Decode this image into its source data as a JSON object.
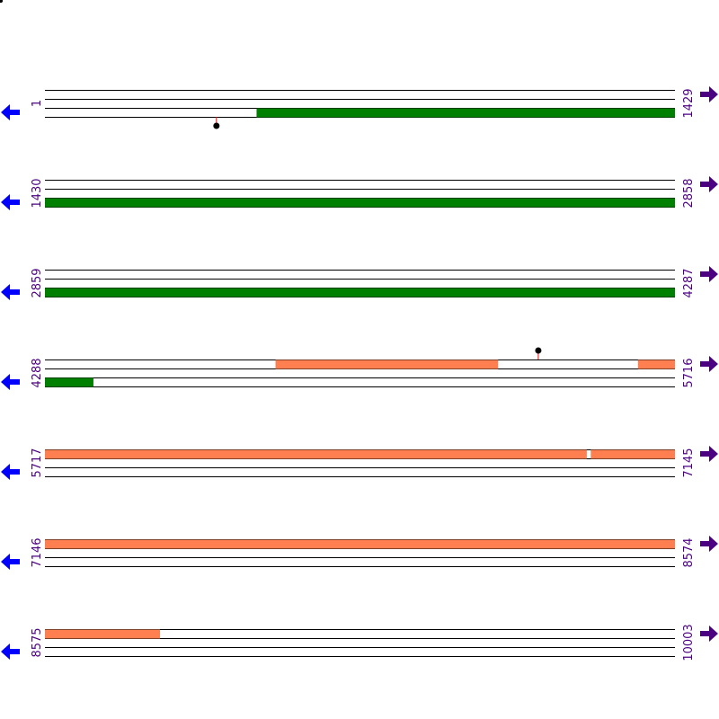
{
  "colors": {
    "line": "#000000",
    "green_feature": "#008000",
    "salmon_feature": "#ff7f50",
    "marker_stem": "#ff0000",
    "marker_dot": "#000000",
    "left_arrow": "#0000ff",
    "right_arrow": "#4b0082",
    "number_text": "#4b0082"
  },
  "icons": {
    "left": "arrow-left-icon",
    "right": "arrow-right-icon"
  },
  "rows": [
    {
      "start_label": "1",
      "end_label": "1429",
      "start": 1,
      "end": 1429,
      "features": [
        {
          "color": "green",
          "track": 3,
          "start": 481,
          "end": 1429
        }
      ],
      "markers": [
        {
          "position": 390,
          "side": "below"
        }
      ]
    },
    {
      "start_label": "1430",
      "end_label": "2858",
      "start": 1430,
      "end": 2858,
      "features": [
        {
          "color": "green",
          "track": 3,
          "start": 1430,
          "end": 2858
        }
      ],
      "markers": []
    },
    {
      "start_label": "2859",
      "end_label": "4287",
      "start": 2859,
      "end": 4287,
      "features": [
        {
          "color": "green",
          "track": 3,
          "start": 2859,
          "end": 4287
        }
      ],
      "markers": []
    },
    {
      "start_label": "4288",
      "end_label": "5716",
      "start": 4288,
      "end": 5716,
      "features": [
        {
          "color": "salmon",
          "track": 1,
          "start": 4811,
          "end": 5315
        },
        {
          "color": "salmon",
          "track": 1,
          "start": 5633,
          "end": 5716
        },
        {
          "color": "green",
          "track": 3,
          "start": 4288,
          "end": 4397
        }
      ],
      "markers": [
        {
          "position": 5407,
          "side": "above"
        }
      ]
    },
    {
      "start_label": "5717",
      "end_label": "7145",
      "start": 5717,
      "end": 7145,
      "features": [
        {
          "color": "salmon",
          "track": 1,
          "start": 5717,
          "end": 6945
        },
        {
          "color": "salmon",
          "track": 1,
          "start": 6955,
          "end": 7145
        }
      ],
      "markers": []
    },
    {
      "start_label": "7146",
      "end_label": "8574",
      "start": 7146,
      "end": 8574,
      "features": [
        {
          "color": "salmon",
          "track": 1,
          "start": 7146,
          "end": 8574
        }
      ],
      "markers": []
    },
    {
      "start_label": "8575",
      "end_label": "10003",
      "start": 8575,
      "end": 10003,
      "features": [
        {
          "color": "salmon",
          "track": 1,
          "start": 8575,
          "end": 8835
        }
      ],
      "markers": []
    }
  ]
}
